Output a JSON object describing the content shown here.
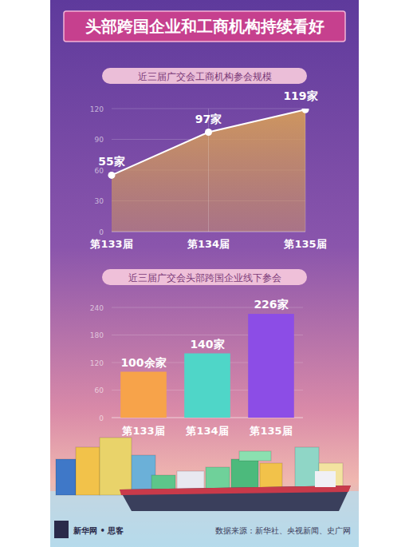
{
  "header": {
    "title": "头部跨国企业和工商机构持续看好"
  },
  "chart_data": [
    {
      "type": "area",
      "title": "近三届广交会工商机构参会规模",
      "categories": [
        "第133届",
        "第134届",
        "第135届"
      ],
      "values": [
        55,
        97,
        119
      ],
      "value_labels": [
        "55家",
        "97家",
        "119家"
      ],
      "color": "#d39a5c",
      "ylim": [
        0,
        120
      ],
      "yticks": [
        0,
        30,
        60,
        90,
        120
      ],
      "grid": true,
      "data_labels": true,
      "marker": "circle"
    },
    {
      "type": "bar",
      "title": "近三届广交会头部跨国企业线下参会",
      "categories": [
        "第133届",
        "第134届",
        "第135届"
      ],
      "values": [
        100,
        140,
        226
      ],
      "value_labels": [
        "100余家",
        "140家",
        "226家"
      ],
      "colors": [
        "#f7a34a",
        "#4fd6c8",
        "#8c4de6"
      ],
      "ylim": [
        0,
        240
      ],
      "yticks": [
        0,
        60,
        120,
        180,
        240
      ],
      "grid": true,
      "data_labels": true
    }
  ],
  "footer": {
    "brand": "新华网 • 思客",
    "source": "数据来源：新华社、央视新闻、史广网"
  }
}
